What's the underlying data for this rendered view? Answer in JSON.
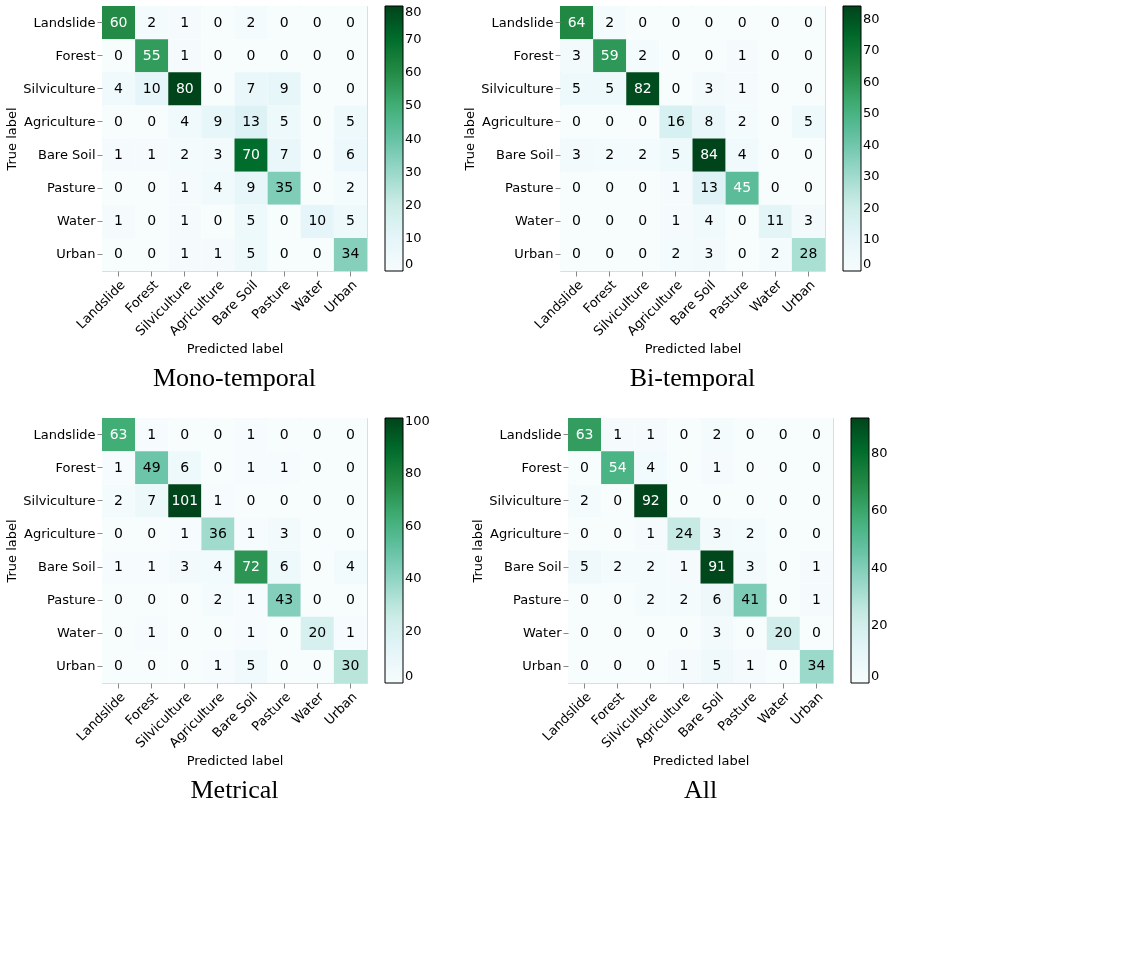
{
  "chart_data": [
    {
      "type": "heatmap",
      "title": "Mono-temporal",
      "xlabel": "Predicted label",
      "ylabel": "True label",
      "data_labels": true,
      "categories": [
        "Landslide",
        "Forest",
        "Silviculture",
        "Agriculture",
        "Bare Soil",
        "Pasture",
        "Water",
        "Urban"
      ],
      "y_categories": [
        "Landslide",
        "Forest",
        "Silviculture",
        "Agriculture",
        "Bare Soil",
        "Pasture",
        "Water",
        "Urban"
      ],
      "cells": [
        [
          60,
          2,
          1,
          0,
          2,
          0,
          0,
          0
        ],
        [
          0,
          55,
          1,
          0,
          0,
          0,
          0,
          0
        ],
        [
          4,
          10,
          80,
          0,
          7,
          9,
          0,
          0
        ],
        [
          0,
          0,
          4,
          9,
          13,
          5,
          0,
          5
        ],
        [
          1,
          1,
          2,
          3,
          70,
          7,
          0,
          6
        ],
        [
          0,
          0,
          1,
          4,
          9,
          35,
          0,
          2
        ],
        [
          1,
          0,
          1,
          0,
          5,
          0,
          10,
          5
        ],
        [
          0,
          0,
          1,
          1,
          5,
          0,
          0,
          34
        ]
      ],
      "clim": [
        0,
        80
      ],
      "cticks": [
        0,
        10,
        20,
        30,
        40,
        50,
        60,
        70,
        80
      ]
    },
    {
      "type": "heatmap",
      "title": "Bi-temporal",
      "xlabel": "Predicted label",
      "ylabel": "True label",
      "data_labels": true,
      "categories": [
        "Landslide",
        "Forest",
        "Silviculture",
        "Agriculture",
        "Bare Soil",
        "Pasture",
        "Water",
        "Urban"
      ],
      "y_categories": [
        "Landslide",
        "Forest",
        "Silviculture",
        "Agriculture",
        "Bare Soil",
        "Pasture",
        "Water",
        "Urban"
      ],
      "cells": [
        [
          64,
          2,
          0,
          0,
          0,
          0,
          0,
          0
        ],
        [
          3,
          59,
          2,
          0,
          0,
          1,
          0,
          0
        ],
        [
          5,
          5,
          82,
          0,
          3,
          1,
          0,
          0
        ],
        [
          0,
          0,
          0,
          16,
          8,
          2,
          0,
          5
        ],
        [
          3,
          2,
          2,
          5,
          84,
          4,
          0,
          0
        ],
        [
          0,
          0,
          0,
          1,
          13,
          45,
          0,
          0
        ],
        [
          0,
          0,
          0,
          1,
          4,
          0,
          11,
          3
        ],
        [
          0,
          0,
          0,
          2,
          3,
          0,
          2,
          28
        ]
      ],
      "clim": [
        0,
        84
      ],
      "cticks": [
        0,
        10,
        20,
        30,
        40,
        50,
        60,
        70,
        80
      ]
    },
    {
      "type": "heatmap",
      "title": "Metrical",
      "xlabel": "Predicted label",
      "ylabel": "True label",
      "data_labels": true,
      "categories": [
        "Landslide",
        "Forest",
        "Silviculture",
        "Agriculture",
        "Bare Soil",
        "Pasture",
        "Water",
        "Urban"
      ],
      "y_categories": [
        "Landslide",
        "Forest",
        "Silviculture",
        "Agriculture",
        "Bare Soil",
        "Pasture",
        "Water",
        "Urban"
      ],
      "cells": [
        [
          63,
          1,
          0,
          0,
          1,
          0,
          0,
          0
        ],
        [
          1,
          49,
          6,
          0,
          1,
          1,
          0,
          0
        ],
        [
          2,
          7,
          101,
          1,
          0,
          0,
          0,
          0
        ],
        [
          0,
          0,
          1,
          36,
          1,
          3,
          0,
          0
        ],
        [
          1,
          1,
          3,
          4,
          72,
          6,
          0,
          4
        ],
        [
          0,
          0,
          0,
          2,
          1,
          43,
          0,
          0
        ],
        [
          0,
          1,
          0,
          0,
          1,
          0,
          20,
          1
        ],
        [
          0,
          0,
          0,
          1,
          5,
          0,
          0,
          30
        ]
      ],
      "clim": [
        0,
        101
      ],
      "cticks": [
        0,
        20,
        40,
        60,
        80,
        100
      ]
    },
    {
      "type": "heatmap",
      "title": "All",
      "xlabel": "Predicted label",
      "ylabel": "True label",
      "data_labels": true,
      "categories": [
        "Landslide",
        "Forest",
        "Silviculture",
        "Agriculture",
        "Bare Soil",
        "Pasture",
        "Water",
        "Urban"
      ],
      "y_categories": [
        "Landslide",
        "Forest",
        "Silviculture",
        "Agriculture",
        "Bare Soil",
        "Pasture",
        "Water",
        "Urban"
      ],
      "cells": [
        [
          63,
          1,
          1,
          0,
          2,
          0,
          0,
          0
        ],
        [
          0,
          54,
          4,
          0,
          1,
          0,
          0,
          0
        ],
        [
          2,
          0,
          92,
          0,
          0,
          0,
          0,
          0
        ],
        [
          0,
          0,
          1,
          24,
          3,
          2,
          0,
          0
        ],
        [
          5,
          2,
          2,
          1,
          91,
          3,
          0,
          1
        ],
        [
          0,
          0,
          2,
          2,
          6,
          41,
          0,
          1
        ],
        [
          0,
          0,
          0,
          0,
          3,
          0,
          20,
          0
        ],
        [
          0,
          0,
          0,
          1,
          5,
          1,
          0,
          34
        ]
      ],
      "clim": [
        0,
        92
      ],
      "cticks": [
        0,
        20,
        40,
        60,
        80
      ]
    }
  ]
}
